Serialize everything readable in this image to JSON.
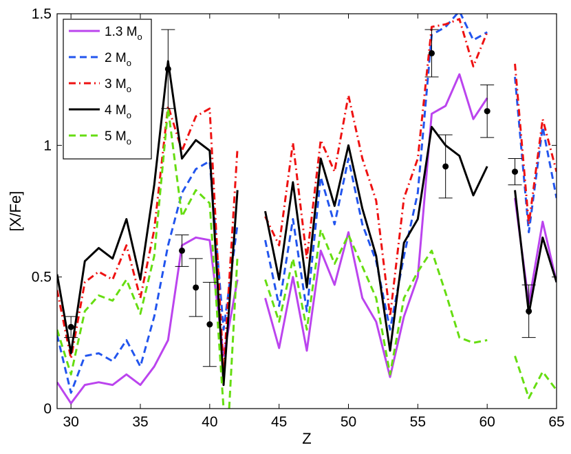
{
  "chart_data": {
    "type": "line",
    "xlabel": "Z",
    "ylabel": "[X/Fe]",
    "xlim": [
      29,
      65
    ],
    "ylim": [
      0,
      1.5
    ],
    "xticks": [
      30,
      35,
      40,
      45,
      50,
      55,
      60,
      65
    ],
    "yticks": [
      0,
      0.5,
      1,
      1.5
    ],
    "ytick_labels": [
      "0",
      "0.5",
      "1",
      "1.5"
    ],
    "grid": false,
    "legend_position": "top-left",
    "series": [
      {
        "name": "1.3 M",
        "name_subscript": "o",
        "color": "#bb44ee",
        "dash": "solid",
        "segments": [
          [
            [
              29,
              0.1
            ],
            [
              30,
              0.02
            ],
            [
              31,
              0.09
            ],
            [
              32,
              0.1
            ],
            [
              33,
              0.09
            ],
            [
              34,
              0.13
            ],
            [
              35,
              0.09
            ],
            [
              36,
              0.16
            ],
            [
              37,
              0.26
            ],
            [
              38,
              0.62
            ],
            [
              39,
              0.65
            ],
            [
              40,
              0.64
            ],
            [
              41,
              0.2
            ],
            [
              42,
              0.49
            ]
          ],
          [
            [
              44,
              0.42
            ],
            [
              45,
              0.23
            ],
            [
              46,
              0.5
            ],
            [
              47,
              0.22
            ],
            [
              48,
              0.6
            ],
            [
              49,
              0.47
            ],
            [
              50,
              0.67
            ],
            [
              51,
              0.42
            ],
            [
              52,
              0.33
            ],
            [
              53,
              0.12
            ],
            [
              54,
              0.35
            ],
            [
              55,
              0.5
            ],
            [
              56,
              1.12
            ],
            [
              57,
              1.15
            ],
            [
              58,
              1.27
            ],
            [
              59,
              1.1
            ],
            [
              60,
              1.18
            ]
          ],
          [
            [
              62,
              0.8
            ],
            [
              63,
              0.4
            ],
            [
              64,
              0.71
            ],
            [
              65,
              0.48
            ]
          ]
        ]
      },
      {
        "name": "2 M",
        "name_subscript": "o",
        "color": "#2255ee",
        "dash": "dashed",
        "segments": [
          [
            [
              29,
              0.28
            ],
            [
              30,
              0.06
            ],
            [
              31,
              0.2
            ],
            [
              32,
              0.21
            ],
            [
              33,
              0.18
            ],
            [
              34,
              0.26
            ],
            [
              35,
              0.16
            ],
            [
              36,
              0.35
            ],
            [
              37,
              0.62
            ],
            [
              38,
              0.82
            ],
            [
              39,
              0.91
            ],
            [
              40,
              0.94
            ],
            [
              41,
              0.3
            ],
            [
              42,
              0.7
            ]
          ],
          [
            [
              44,
              0.64
            ],
            [
              45,
              0.39
            ],
            [
              46,
              0.72
            ],
            [
              47,
              0.37
            ],
            [
              48,
              0.88
            ],
            [
              49,
              0.7
            ],
            [
              50,
              0.95
            ],
            [
              51,
              0.7
            ],
            [
              52,
              0.56
            ],
            [
              53,
              0.3
            ],
            [
              54,
              0.58
            ],
            [
              55,
              0.82
            ],
            [
              56,
              1.42
            ],
            [
              57,
              1.45
            ],
            [
              58,
              1.51
            ],
            [
              59,
              1.4
            ],
            [
              60,
              1.43
            ]
          ],
          [
            [
              62,
              1.26
            ],
            [
              63,
              0.67
            ],
            [
              64,
              1.07
            ],
            [
              65,
              0.8
            ]
          ]
        ]
      },
      {
        "name": "3 M",
        "name_subscript": "o",
        "color": "#ee1111",
        "dash": "dashdot",
        "segments": [
          [
            [
              29,
              0.45
            ],
            [
              30,
              0.19
            ],
            [
              31,
              0.48
            ],
            [
              32,
              0.52
            ],
            [
              33,
              0.49
            ],
            [
              34,
              0.62
            ],
            [
              35,
              0.42
            ],
            [
              36,
              0.68
            ],
            [
              37,
              1.15
            ],
            [
              38,
              0.98
            ],
            [
              39,
              1.11
            ],
            [
              40,
              1.14
            ],
            [
              41,
              0.14
            ],
            [
              42,
              0.99
            ]
          ],
          [
            [
              44,
              0.73
            ],
            [
              45,
              0.62
            ],
            [
              46,
              1.01
            ],
            [
              47,
              0.57
            ],
            [
              48,
              1.02
            ],
            [
              49,
              0.9
            ],
            [
              50,
              1.19
            ],
            [
              51,
              0.95
            ],
            [
              52,
              0.79
            ],
            [
              53,
              0.35
            ],
            [
              54,
              0.8
            ],
            [
              55,
              0.95
            ],
            [
              56,
              1.45
            ],
            [
              57,
              1.46
            ],
            [
              58,
              1.48
            ],
            [
              59,
              1.3
            ],
            [
              60,
              1.43
            ]
          ],
          [
            [
              62,
              1.31
            ],
            [
              63,
              0.7
            ],
            [
              64,
              1.1
            ],
            [
              65,
              0.9
            ]
          ]
        ]
      },
      {
        "name": "4 M",
        "name_subscript": "o",
        "color": "#000000",
        "dash": "solid",
        "segments": [
          [
            [
              29,
              0.51
            ],
            [
              30,
              0.21
            ],
            [
              31,
              0.56
            ],
            [
              32,
              0.61
            ],
            [
              33,
              0.57
            ],
            [
              34,
              0.72
            ],
            [
              35,
              0.49
            ],
            [
              36,
              0.85
            ],
            [
              37,
              1.32
            ],
            [
              38,
              0.95
            ],
            [
              39,
              1.02
            ],
            [
              40,
              0.98
            ],
            [
              41,
              0.09
            ],
            [
              42,
              0.83
            ]
          ],
          [
            [
              44,
              0.75
            ],
            [
              45,
              0.49
            ],
            [
              46,
              0.86
            ],
            [
              47,
              0.46
            ],
            [
              48,
              0.95
            ],
            [
              49,
              0.77
            ],
            [
              50,
              1.0
            ],
            [
              51,
              0.76
            ],
            [
              52,
              0.58
            ],
            [
              53,
              0.22
            ],
            [
              54,
              0.63
            ],
            [
              55,
              0.72
            ],
            [
              56,
              1.07
            ],
            [
              57,
              1.0
            ],
            [
              58,
              0.96
            ],
            [
              59,
              0.81
            ],
            [
              60,
              0.92
            ]
          ],
          [
            [
              62,
              0.83
            ],
            [
              63,
              0.36
            ],
            [
              64,
              0.65
            ],
            [
              65,
              0.48
            ]
          ]
        ]
      },
      {
        "name": "5 M",
        "name_subscript": "o",
        "color": "#66dd11",
        "dash": "dashed",
        "segments": [
          [
            [
              29,
              0.3
            ],
            [
              30,
              0.13
            ],
            [
              31,
              0.37
            ],
            [
              32,
              0.43
            ],
            [
              33,
              0.41
            ],
            [
              34,
              0.49
            ],
            [
              35,
              0.36
            ],
            [
              36,
              0.58
            ],
            [
              37,
              1.14
            ],
            [
              38,
              0.73
            ],
            [
              39,
              0.83
            ],
            [
              40,
              0.78
            ],
            [
              41,
              0.0
            ]
          ],
          [
            [
              41.4,
              0.0
            ],
            [
              42,
              0.58
            ]
          ],
          [
            [
              44,
              0.49
            ],
            [
              45,
              0.33
            ],
            [
              46,
              0.57
            ],
            [
              47,
              0.3
            ],
            [
              48,
              0.68
            ],
            [
              49,
              0.55
            ],
            [
              50,
              0.66
            ],
            [
              51,
              0.54
            ],
            [
              52,
              0.42
            ],
            [
              53,
              0.13
            ],
            [
              54,
              0.42
            ],
            [
              55,
              0.52
            ],
            [
              56,
              0.6
            ],
            [
              57,
              0.44
            ],
            [
              58,
              0.27
            ],
            [
              59,
              0.25
            ],
            [
              60,
              0.26
            ]
          ],
          [
            [
              62,
              0.2
            ],
            [
              63,
              0.04
            ],
            [
              64,
              0.14
            ],
            [
              65,
              0.07
            ]
          ]
        ]
      }
    ],
    "observations": [
      {
        "x": 30,
        "y": 0.31,
        "err_low": 0.04,
        "err_high": 0.04
      },
      {
        "x": 37,
        "y": 1.29,
        "err_low": 0.15,
        "err_high": 0.15
      },
      {
        "x": 38,
        "y": 0.6,
        "err_low": 0.06,
        "err_high": 0.06
      },
      {
        "x": 39,
        "y": 0.46,
        "err_low": 0.11,
        "err_high": 0.11
      },
      {
        "x": 40,
        "y": 0.32,
        "err_low": 0.16,
        "err_high": 0.16
      },
      {
        "x": 56,
        "y": 1.35,
        "err_low": 0.09,
        "err_high": 0.09
      },
      {
        "x": 57,
        "y": 0.92,
        "err_low": 0.12,
        "err_high": 0.12
      },
      {
        "x": 60,
        "y": 1.13,
        "err_low": 0.1,
        "err_high": 0.1
      },
      {
        "x": 62,
        "y": 0.9,
        "err_low": 0.05,
        "err_high": 0.05
      },
      {
        "x": 63,
        "y": 0.37,
        "err_low": 0.1,
        "err_high": 0.1
      }
    ]
  }
}
